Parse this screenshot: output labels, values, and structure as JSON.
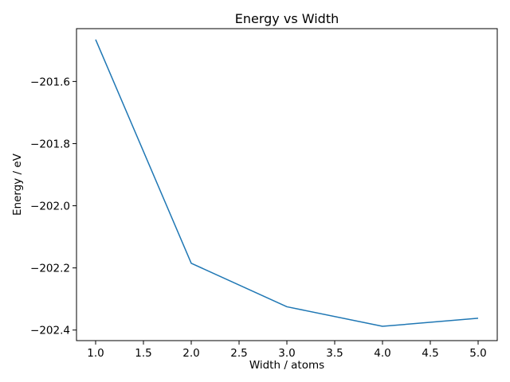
{
  "chart_data": {
    "type": "line",
    "title": "Energy vs Width",
    "xlabel": "Width / atoms",
    "ylabel": "Energy / eV",
    "x": [
      1.0,
      2.0,
      3.0,
      4.0,
      5.0
    ],
    "series": [
      {
        "values": [
          -201.465,
          -202.185,
          -202.325,
          -202.388,
          -202.362
        ],
        "color": "#1f77b4"
      }
    ],
    "xlim": [
      0.8,
      5.2
    ],
    "ylim": [
      -202.434,
      -201.43
    ],
    "xticks": [
      1.0,
      1.5,
      2.0,
      2.5,
      3.0,
      3.5,
      4.0,
      4.5,
      5.0
    ],
    "xtick_labels": [
      "1.0",
      "1.5",
      "2.0",
      "2.5",
      "3.0",
      "3.5",
      "4.0",
      "4.5",
      "5.0"
    ],
    "yticks": [
      -201.6,
      -201.8,
      -202.0,
      -202.2,
      -202.4
    ],
    "ytick_labels": [
      "−201.6",
      "−201.8",
      "−202.0",
      "−202.2",
      "−202.4"
    ],
    "grid": false,
    "legend": false
  }
}
